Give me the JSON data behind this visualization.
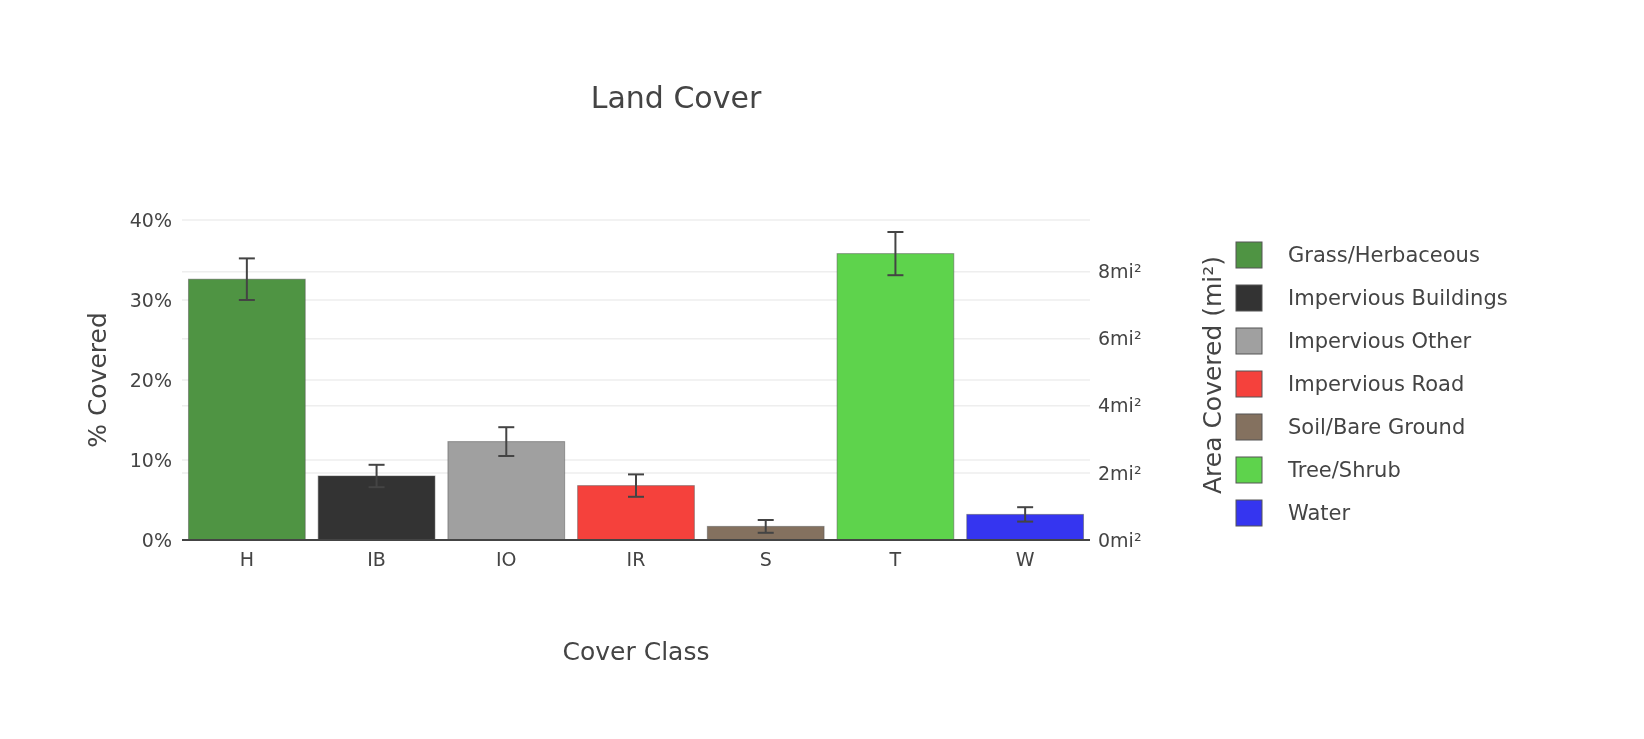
{
  "chart_data": {
    "type": "bar",
    "title": "Land Cover",
    "xlabel": "Cover Class",
    "ylabel": "% Covered",
    "y2label": "Area Covered (mi²)",
    "categories": [
      "H",
      "IB",
      "IO",
      "IR",
      "S",
      "T",
      "W"
    ],
    "series": [
      {
        "name": "Grass/Herbaceous",
        "color": "#4f9443",
        "values": [
          32.6,
          null,
          null,
          null,
          null,
          null,
          null
        ],
        "errors": [
          2.6,
          null,
          null,
          null,
          null,
          null,
          null
        ]
      },
      {
        "name": "Impervious Buildings",
        "color": "#333333",
        "values": [
          null,
          8.0,
          null,
          null,
          null,
          null,
          null
        ],
        "errors": [
          null,
          1.4,
          null,
          null,
          null,
          null,
          null
        ]
      },
      {
        "name": "Impervious Other",
        "color": "#a0a0a0",
        "values": [
          null,
          null,
          12.3,
          null,
          null,
          null,
          null
        ],
        "errors": [
          null,
          null,
          1.8,
          null,
          null,
          null,
          null
        ]
      },
      {
        "name": "Impervious Road",
        "color": "#f5413c",
        "values": [
          null,
          null,
          null,
          6.8,
          null,
          null,
          null
        ],
        "errors": [
          null,
          null,
          null,
          1.4,
          null,
          null,
          null
        ]
      },
      {
        "name": "Soil/Bare Ground",
        "color": "#84715f",
        "values": [
          null,
          null,
          null,
          null,
          1.7,
          null,
          null
        ],
        "errors": [
          null,
          null,
          null,
          null,
          0.8,
          null,
          null
        ]
      },
      {
        "name": "Tree/Shrub",
        "color": "#5ed34c",
        "values": [
          null,
          null,
          null,
          null,
          null,
          35.8,
          null
        ],
        "errors": [
          null,
          null,
          null,
          null,
          null,
          2.7,
          null
        ]
      },
      {
        "name": "Water",
        "color": "#3535f0",
        "values": [
          null,
          null,
          null,
          null,
          null,
          null,
          3.2
        ],
        "errors": [
          null,
          null,
          null,
          null,
          null,
          null,
          0.9
        ]
      }
    ],
    "ylim": [
      0,
      40
    ],
    "yticks": [
      {
        "value": 0,
        "label": "0%"
      },
      {
        "value": 10,
        "label": "10%"
      },
      {
        "value": 20,
        "label": "20%"
      },
      {
        "value": 30,
        "label": "30%"
      },
      {
        "value": 40,
        "label": "40%"
      }
    ],
    "y2lim": [
      0,
      9.54
    ],
    "y2ticks": [
      {
        "value": 0,
        "label": "0mi²"
      },
      {
        "value": 2,
        "label": "2mi²"
      },
      {
        "value": 4,
        "label": "4mi²"
      },
      {
        "value": 6,
        "label": "6mi²"
      },
      {
        "value": 8,
        "label": "8mi²"
      }
    ],
    "grid": true,
    "legend": "right"
  }
}
